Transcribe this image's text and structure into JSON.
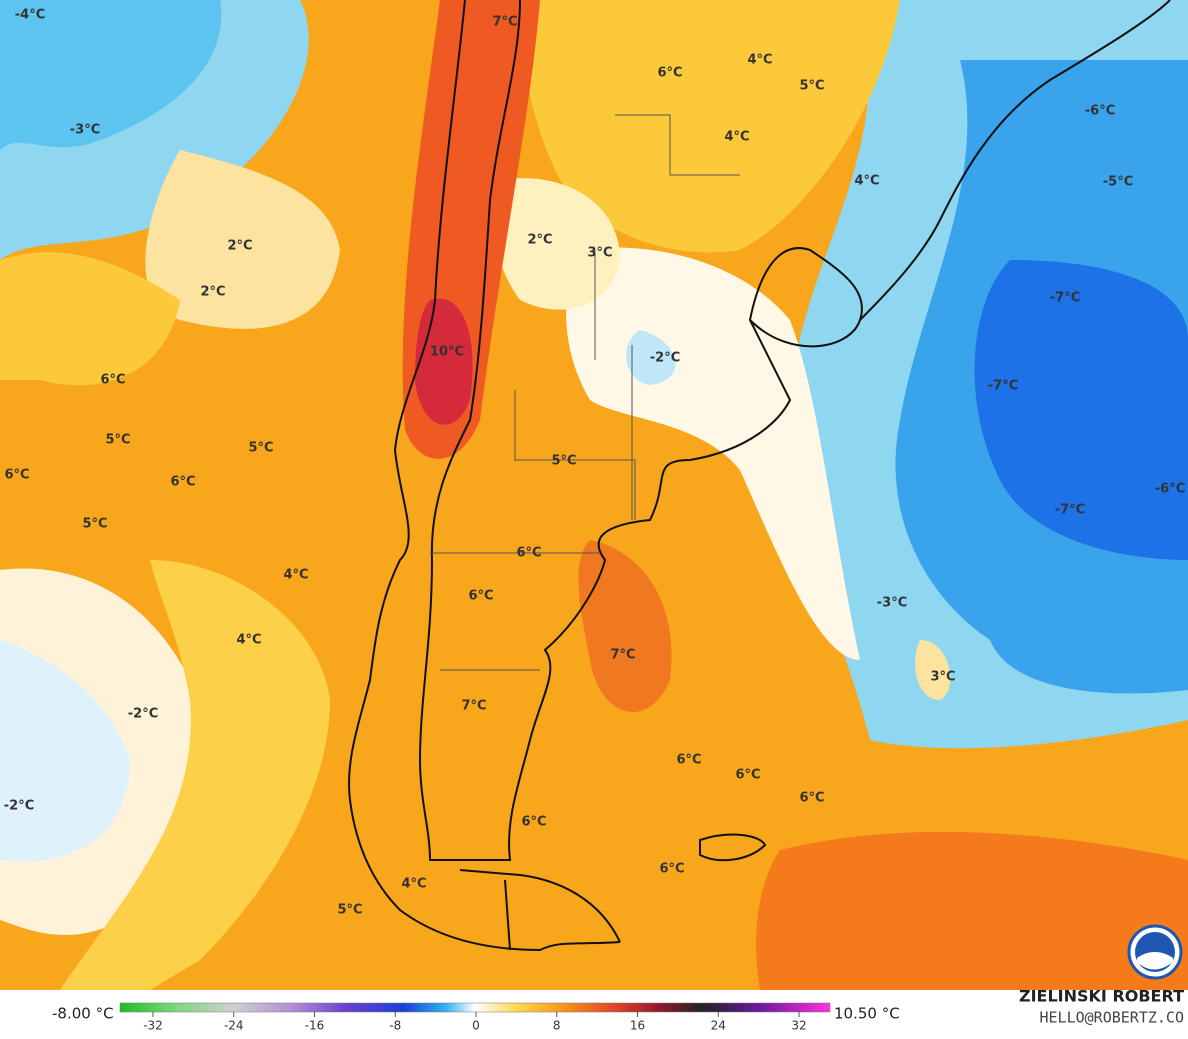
{
  "map": {
    "labels": [
      "-4°C",
      "7°C",
      "6°C",
      "4°C",
      "5°C",
      "-3°C",
      "-6°C",
      "4°C",
      "4°C",
      "-5°C",
      "2°C",
      "2°C",
      "3°C",
      "2°C",
      "-7°C",
      "-2°C",
      "10°C",
      "6°C",
      "-7°C",
      "5°C",
      "5°C",
      "5°C",
      "6°C",
      "6°C",
      "-6°C",
      "-7°C",
      "5°C",
      "6°C",
      "4°C",
      "6°C",
      "-3°C",
      "4°C",
      "7°C",
      "3°C",
      "-2°C",
      "7°C",
      "6°C",
      "6°C",
      "6°C",
      "-2°C",
      "6°C",
      "6°C",
      "4°C",
      "5°C"
    ]
  },
  "colorbar": {
    "min_label": "-8.00 °C",
    "max_label": "10.50 °C",
    "ticks": [
      -32,
      -24,
      -16,
      -8,
      0,
      8,
      16,
      24,
      32
    ]
  },
  "credit": {
    "name": "ZIELINSKI ROBERT",
    "email": "HELLO@ROBERTZ.CO"
  }
}
